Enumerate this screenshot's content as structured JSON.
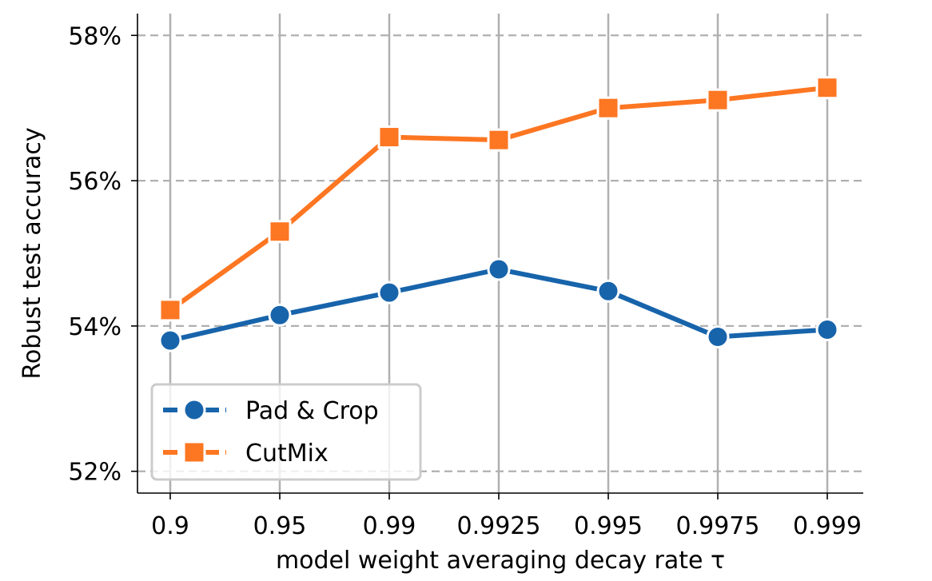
{
  "chart_data": {
    "type": "line",
    "title": "",
    "xlabel": "model weight averaging decay rate τ",
    "ylabel": "Robust test accuracy",
    "categories": [
      "0.9",
      "0.95",
      "0.99",
      "0.9925",
      "0.995",
      "0.9975",
      "0.999"
    ],
    "yticks": [
      "52%",
      "54%",
      "56%",
      "58%"
    ],
    "ytick_values": [
      52,
      54,
      56,
      58
    ],
    "ylim": [
      51.7,
      58.3
    ],
    "grid": true,
    "legend_position": "lower-left",
    "series": [
      {
        "name": "Pad & Crop",
        "color": "#1764ab",
        "marker": "circle",
        "values": [
          53.8,
          54.15,
          54.46,
          54.78,
          54.48,
          53.85,
          53.95
        ]
      },
      {
        "name": "CutMix",
        "color": "#fd7622",
        "marker": "square",
        "values": [
          54.22,
          55.3,
          56.6,
          56.56,
          57.0,
          57.11,
          57.28
        ]
      }
    ]
  }
}
